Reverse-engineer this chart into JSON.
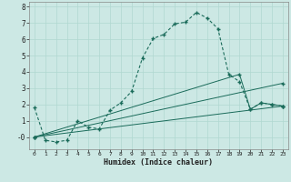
{
  "xlabel": "Humidex (Indice chaleur)",
  "background_color": "#cce8e4",
  "grid_color": "#b0d8d0",
  "line_color": "#1a6b5a",
  "xlim": [
    -0.5,
    23.5
  ],
  "ylim": [
    -0.75,
    8.3
  ],
  "xticks": [
    0,
    1,
    2,
    3,
    4,
    5,
    6,
    7,
    8,
    9,
    10,
    11,
    12,
    13,
    14,
    15,
    16,
    17,
    18,
    19,
    20,
    21,
    22,
    23
  ],
  "yticks": [
    0,
    1,
    2,
    3,
    4,
    5,
    6,
    7,
    8
  ],
  "ytick_labels": [
    "-0",
    "1",
    "2",
    "3",
    "4",
    "5",
    "6",
    "7",
    "8"
  ],
  "line1_x": [
    0,
    1,
    2,
    3,
    4,
    5,
    6,
    7,
    8,
    9,
    10,
    11,
    12,
    13,
    14,
    15,
    16,
    17,
    18,
    19,
    20,
    21,
    22,
    23
  ],
  "line1_y": [
    1.8,
    -0.2,
    -0.3,
    -0.2,
    1.0,
    0.6,
    0.5,
    1.65,
    2.1,
    2.8,
    4.85,
    6.05,
    6.3,
    6.95,
    7.05,
    7.65,
    7.3,
    6.65,
    3.85,
    3.4,
    1.7,
    2.1,
    2.0,
    1.9
  ],
  "line2_x": [
    0,
    23
  ],
  "line2_y": [
    0.0,
    1.9
  ],
  "line3_x": [
    0,
    23
  ],
  "line3_y": [
    0.0,
    3.3
  ],
  "line4_x": [
    0,
    19,
    20,
    21,
    22,
    23
  ],
  "line4_y": [
    0.0,
    3.85,
    1.7,
    2.1,
    2.0,
    1.9
  ]
}
